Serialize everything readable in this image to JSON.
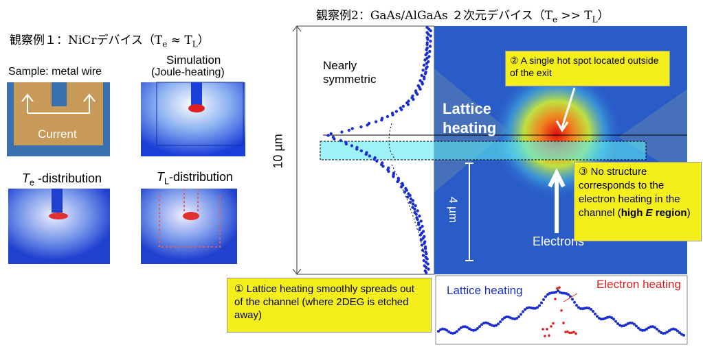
{
  "left": {
    "title": {
      "main": "観察例１：NiCrデバイス（T",
      "sub1": "e",
      "mid": " ≈ T",
      "sub2": "L",
      "end": "）"
    },
    "sample_label": "Sample: metal wire",
    "current_label": "Current",
    "simulation_label": "Simulation",
    "simulation_sublabel": "(Joule-heating)",
    "te_label": {
      "t": "T",
      "sub": "e",
      "rest": " -distribution"
    },
    "tl_label": {
      "t": "T",
      "sub": "L",
      "rest": "-distribution"
    }
  },
  "right": {
    "title": {
      "main": "観察例2：GaAs/AlGaAs ２次元デバイス（T",
      "sub1": "e",
      "mid": " >> T",
      "sub2": "L",
      "end": "）"
    },
    "scale_10": "10 µm",
    "nearly": "Nearly",
    "symmetric": "symmetric",
    "lattice_1": "Lattice",
    "lattice_2": "heating",
    "scale_4": "4 µm",
    "electrons": "Electrons",
    "callout_2": "② A single hot spot located outside of the exit",
    "callout_3": {
      "before": "③ No structure corresponds to the electron heating in the channel (",
      "bold": "high ",
      "italic": "E",
      "bold_after": " region",
      "after": ")"
    },
    "callout_1": "① Lattice heating smoothly spreads out of the channel (where 2DEG is etched away)",
    "plot_lattice": "Lattice heating",
    "plot_electron": "Electron heating"
  }
}
